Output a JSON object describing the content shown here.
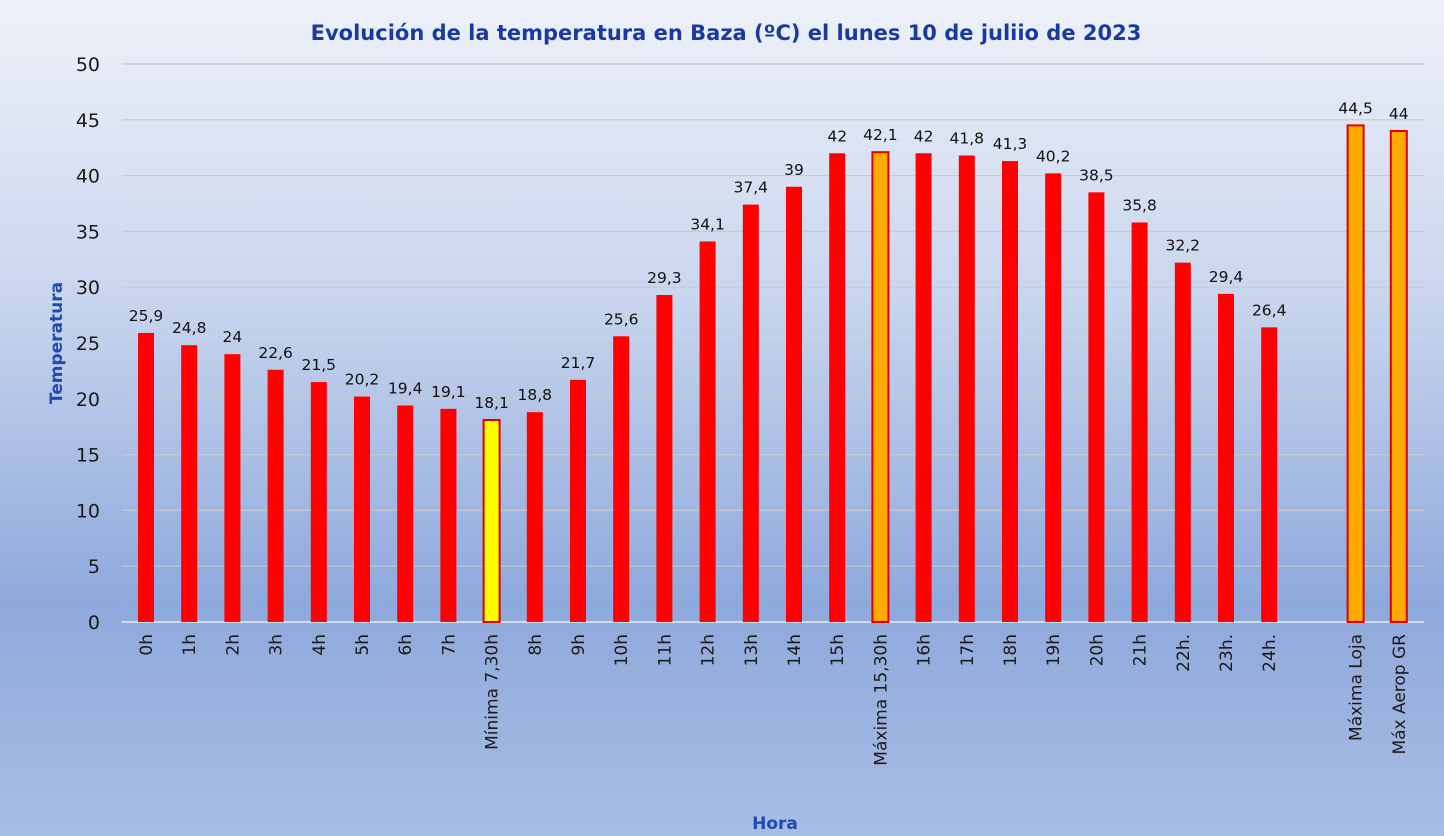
{
  "chart_data": {
    "type": "bar",
    "title": "Evolución de la temperatura en Baza (ºC) el lunes 10 de juliio de 2023",
    "xlabel": "Hora",
    "ylabel": "Temperatura",
    "ylim": [
      0,
      50
    ],
    "yticks": [
      "0",
      "5",
      "10",
      "15",
      "20",
      "25",
      "30",
      "35",
      "40",
      "45",
      "50"
    ],
    "grid": true,
    "legend": "none",
    "categories": [
      "0h",
      "1h",
      "2h",
      "3h",
      "4h",
      "5h",
      "6h",
      "7h",
      "Mínima 7,30h",
      "8h",
      "9h",
      "10h",
      "11h",
      "12h",
      "13h",
      "14h",
      "15h",
      "Máxima 15,30h",
      "16h",
      "17h",
      "18h",
      "19h",
      "20h",
      "21h",
      "22h.",
      "23h.",
      "24h.",
      "",
      "Máxima Loja",
      "Máx Aerop GR"
    ],
    "values": [
      25.9,
      24.8,
      24,
      22.6,
      21.5,
      20.2,
      19.4,
      19.1,
      18.1,
      18.8,
      21.7,
      25.6,
      29.3,
      34.1,
      37.4,
      39,
      42,
      42.1,
      42,
      41.8,
      41.3,
      40.2,
      38.5,
      35.8,
      32.2,
      29.4,
      26.4,
      null,
      44.5,
      44
    ],
    "data_labels": [
      "25,9",
      "24,8",
      "24",
      "22,6",
      "21,5",
      "20,2",
      "19,4",
      "19,1",
      "18,1",
      "18,8",
      "21,7",
      "25,6",
      "29,3",
      "34,1",
      "37,4",
      "39",
      "42",
      "42,1",
      "42",
      "41,8",
      "41,3",
      "40,2",
      "38,5",
      "35,8",
      "32,2",
      "29,4",
      "26,4",
      "",
      "44,5",
      "44"
    ],
    "bar_colors": [
      "red",
      "red",
      "red",
      "red",
      "red",
      "red",
      "red",
      "red",
      "yellow",
      "red",
      "red",
      "red",
      "red",
      "red",
      "red",
      "red",
      "red",
      "orange",
      "red",
      "red",
      "red",
      "red",
      "red",
      "red",
      "red",
      "red",
      "red",
      "none",
      "orange",
      "orange"
    ],
    "palette": {
      "red": "#ff0000",
      "yellow": "#ffff00",
      "orange": "#ffaa00",
      "outline": "#e00000"
    }
  }
}
